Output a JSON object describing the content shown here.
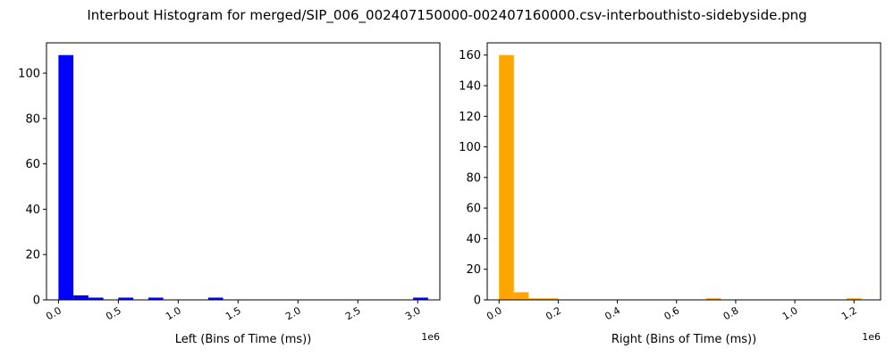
{
  "figure": {
    "title": "Interbout Histogram for merged/SIP_006_002407150000-002407160000.csv-interbouthisto-sidebyside.png"
  },
  "chart_data": [
    {
      "type": "bar",
      "color": "#0000ff",
      "xlabel": "Left (Bins of Time (ms))",
      "ylabel": "",
      "x_offset_label": "1e6",
      "xlim": [
        -100000,
        3185000
      ],
      "ylim": [
        0,
        113.4
      ],
      "x_ticks": [
        0,
        500000,
        1000000,
        1500000,
        2000000,
        2500000,
        3000000
      ],
      "x_tick_labels": [
        "0.0",
        "0.5",
        "1.0",
        "1.5",
        "2.0",
        "2.5",
        "3.0"
      ],
      "y_ticks": [
        0,
        20,
        40,
        60,
        80,
        100
      ],
      "y_tick_labels": [
        "0",
        "20",
        "40",
        "60",
        "80",
        "100"
      ],
      "bin_width": 125000,
      "bins": [
        {
          "x": 0,
          "value": 108
        },
        {
          "x": 125000,
          "value": 2
        },
        {
          "x": 250000,
          "value": 1
        },
        {
          "x": 500000,
          "value": 1
        },
        {
          "x": 750000,
          "value": 1
        },
        {
          "x": 1250000,
          "value": 1
        },
        {
          "x": 2962000,
          "value": 1
        }
      ]
    },
    {
      "type": "bar",
      "color": "#ffa500",
      "xlabel": "Right (Bins of Time (ms))",
      "ylabel": "",
      "x_offset_label": "1e6",
      "xlim": [
        -40000,
        1290000
      ],
      "ylim": [
        0,
        168
      ],
      "x_ticks": [
        0,
        200000,
        400000,
        600000,
        800000,
        1000000,
        1200000
      ],
      "x_tick_labels": [
        "0.0",
        "0.2",
        "0.4",
        "0.6",
        "0.8",
        "1.0",
        "1.2"
      ],
      "y_ticks": [
        0,
        20,
        40,
        60,
        80,
        100,
        120,
        140,
        160
      ],
      "y_tick_labels": [
        "0",
        "20",
        "40",
        "60",
        "80",
        "100",
        "120",
        "140",
        "160"
      ],
      "bin_width": 50000,
      "bins": [
        {
          "x": 0,
          "value": 160
        },
        {
          "x": 50000,
          "value": 5
        },
        {
          "x": 100000,
          "value": 1
        },
        {
          "x": 150000,
          "value": 1
        },
        {
          "x": 700000,
          "value": 1
        },
        {
          "x": 1175000,
          "value": 1
        }
      ]
    }
  ]
}
